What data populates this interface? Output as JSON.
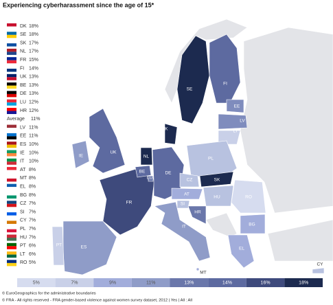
{
  "title": "Experiencing cyberharassment since the age of 15*",
  "ranking": [
    {
      "name": "DK",
      "value": "18%"
    },
    {
      "name": "SE",
      "value": "18%"
    },
    {
      "name": "SK",
      "value": "17%"
    },
    {
      "name": "NL",
      "value": "17%"
    },
    {
      "name": "FR",
      "value": "15%"
    },
    {
      "name": "FI",
      "value": "14%"
    },
    {
      "name": "UK",
      "value": "13%"
    },
    {
      "name": "BE",
      "value": "13%"
    },
    {
      "name": "DE",
      "value": "13%"
    },
    {
      "name": "LU",
      "value": "12%"
    },
    {
      "name": "HR",
      "value": "12%"
    },
    {
      "name": "Average",
      "value": "11%"
    },
    {
      "name": "LV",
      "value": "11%"
    },
    {
      "name": "EE",
      "value": "11%"
    },
    {
      "name": "ES",
      "value": "10%"
    },
    {
      "name": "IE",
      "value": "10%"
    },
    {
      "name": "IT",
      "value": "10%"
    },
    {
      "name": "AT",
      "value": "8%"
    },
    {
      "name": "MT",
      "value": "8%"
    },
    {
      "name": "EL",
      "value": "8%"
    },
    {
      "name": "BG",
      "value": "8%"
    },
    {
      "name": "CZ",
      "value": "7%"
    },
    {
      "name": "SI",
      "value": "7%"
    },
    {
      "name": "CY",
      "value": "7%"
    },
    {
      "name": "PL",
      "value": "7%"
    },
    {
      "name": "HU",
      "value": "7%"
    },
    {
      "name": "PT",
      "value": "6%"
    },
    {
      "name": "LT",
      "value": "6%"
    },
    {
      "name": "RO",
      "value": "5%"
    }
  ],
  "map_labels": [
    "SE",
    "FI",
    "EE",
    "LV",
    "LT",
    "DK",
    "IE",
    "UK",
    "NL",
    "BE",
    "LU",
    "DE",
    "PL",
    "CZ",
    "SK",
    "AT",
    "SI",
    "HR",
    "HU",
    "RO",
    "FR",
    "IT",
    "BG",
    "PT",
    "ES",
    "EL",
    "MT",
    "CY"
  ],
  "scale": [
    "5%",
    "7%",
    "9%",
    "11%",
    "13%",
    "14%",
    "16%",
    "18%"
  ],
  "footer": [
    "© EuroGeographics for the administrative boundaries",
    "© FRA - All rights reserved - FRA gender-based violence against women survey dataset, 2012 | Yes | All : All"
  ]
}
